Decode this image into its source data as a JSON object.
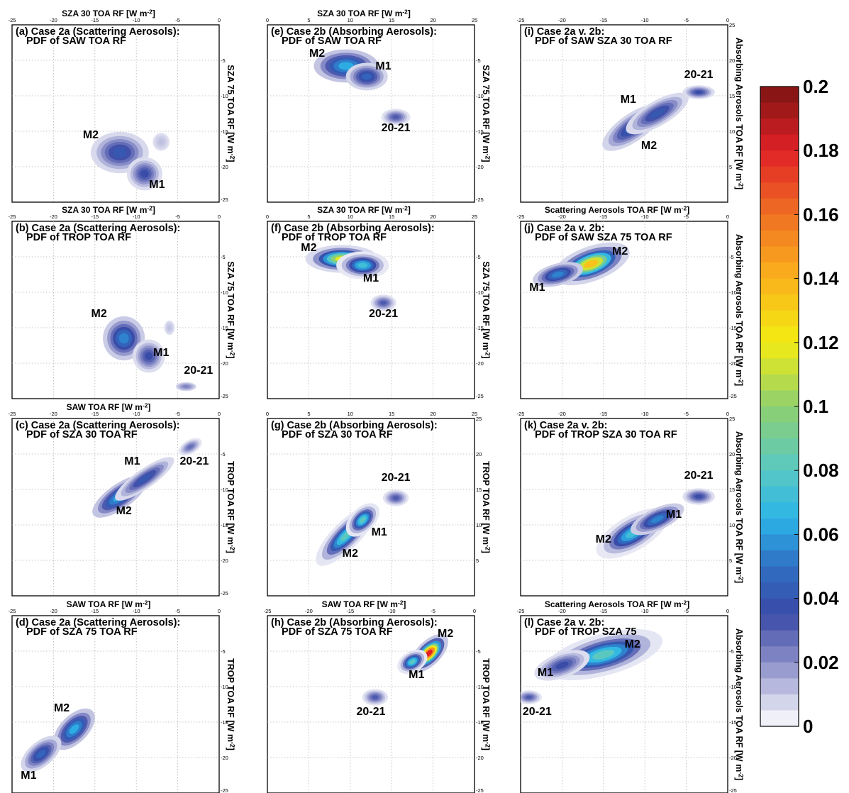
{
  "colorbar": {
    "ticks": [
      "0.2",
      "0.18",
      "0.16",
      "0.14",
      "0.12",
      "0.1",
      "0.08",
      "0.06",
      "0.04",
      "0.02",
      "0"
    ],
    "range": [
      0,
      0.2
    ],
    "colormap": [
      [
        0.0,
        "#ffffff"
      ],
      [
        0.02,
        "#8a8ec8"
      ],
      [
        0.035,
        "#3a4aa6"
      ],
      [
        0.05,
        "#2f6fc4"
      ],
      [
        0.065,
        "#2cb5e8"
      ],
      [
        0.08,
        "#58c8c4"
      ],
      [
        0.1,
        "#8fd070"
      ],
      [
        0.12,
        "#f3ed12"
      ],
      [
        0.14,
        "#fbb21c"
      ],
      [
        0.16,
        "#f07024"
      ],
      [
        0.18,
        "#e02026"
      ],
      [
        0.2,
        "#7c1512"
      ]
    ]
  },
  "chart_data": [
    {
      "id": "a",
      "type": "heatmap",
      "title": [
        "(a) Case 2a (Scattering Aerosols):",
        "PDF of SAW TOA RF"
      ],
      "xlabel": "SZA 30 TOA RF [W m-2]",
      "ylabel": "SZA 75 TOA RF [W m-2]",
      "xlim": [
        -25,
        0
      ],
      "ylim": [
        -25,
        0
      ],
      "xticks": [
        "-25",
        "-20",
        "-15",
        "-10",
        "-5",
        "0"
      ],
      "yticks": [
        "-5",
        "-10",
        "-15",
        "-20",
        "-25"
      ],
      "blobs": [
        {
          "x": -12,
          "y": -18,
          "sx": 1.8,
          "sy": 1.5,
          "rot": 0,
          "peak": 0.045
        },
        {
          "x": -9,
          "y": -21,
          "sx": 1.1,
          "sy": 1.2,
          "rot": 0,
          "peak": 0.04
        },
        {
          "x": -7,
          "y": -16.5,
          "sx": 0.8,
          "sy": 1.0,
          "rot": 0,
          "peak": 0.012
        }
      ],
      "labels": [
        {
          "text": "M2",
          "x": -15.5,
          "y": -16
        },
        {
          "text": "M1",
          "x": -7.5,
          "y": -23
        }
      ]
    },
    {
      "id": "b",
      "type": "heatmap",
      "title": [
        "(b) Case 2a (Scattering Aerosols):",
        "PDF of TROP TOA RF"
      ],
      "xlabel": "SZA 30 TOA RF [W m-2]",
      "ylabel": "SZA 75 TOA RF [W m-2]",
      "xlim": [
        -25,
        0
      ],
      "ylim": [
        -25,
        0
      ],
      "xticks": [
        "-25",
        "-20",
        "-15",
        "-10",
        "-5",
        "0"
      ],
      "yticks": [
        "-5",
        "-10",
        "-15",
        "-20",
        "-25"
      ],
      "blobs": [
        {
          "x": -11.5,
          "y": -16.5,
          "sx": 1.3,
          "sy": 1.6,
          "rot": 0,
          "peak": 0.06
        },
        {
          "x": -8.5,
          "y": -19,
          "sx": 1.0,
          "sy": 1.2,
          "rot": 0,
          "peak": 0.04
        },
        {
          "x": -6,
          "y": -15,
          "sx": 0.5,
          "sy": 0.8,
          "rot": 0,
          "peak": 0.012
        },
        {
          "x": -4,
          "y": -23.3,
          "sx": 0.8,
          "sy": 0.4,
          "rot": 0,
          "peak": 0.025
        }
      ],
      "labels": [
        {
          "text": "M2",
          "x": -14.5,
          "y": -13.5
        },
        {
          "text": "M1",
          "x": -7,
          "y": -19
        },
        {
          "text": "20-21",
          "x": -2.5,
          "y": -21.5
        }
      ]
    },
    {
      "id": "c",
      "type": "heatmap",
      "title": [
        "(c) Case 2a (Scattering Aerosols):",
        "PDF of SZA 30 TOA RF"
      ],
      "xlabel": "SAW TOA RF [W m-2]",
      "ylabel": "TROP TOA RF [W m-2]",
      "xlim": [
        -25,
        0
      ],
      "ylim": [
        -25,
        0
      ],
      "xticks": [
        "-25",
        "-20",
        "-15",
        "-10",
        "-5",
        "0"
      ],
      "yticks": [
        "-5",
        "-10",
        "-15",
        "-20",
        "-25"
      ],
      "blobs": [
        {
          "x": -12,
          "y": -11,
          "sx": 2.0,
          "sy": 0.9,
          "rot": -35,
          "peak": 0.07
        },
        {
          "x": -9,
          "y": -8.5,
          "sx": 2.2,
          "sy": 0.7,
          "rot": -35,
          "peak": 0.045
        },
        {
          "x": -3.5,
          "y": -4,
          "sx": 0.8,
          "sy": 0.5,
          "rot": -30,
          "peak": 0.03
        }
      ],
      "labels": [
        {
          "text": "M1",
          "x": -10.5,
          "y": -6.5
        },
        {
          "text": "M2",
          "x": -11.5,
          "y": -13.5
        },
        {
          "text": "20-21",
          "x": -3,
          "y": -6.5
        }
      ]
    },
    {
      "id": "d",
      "type": "heatmap",
      "title": [
        "(d) Case 2a (Scattering Aerosols):",
        "PDF of SZA 75 TOA RF"
      ],
      "xlabel": "SAW TOA RF [W m-2]",
      "ylabel": "TROP TOA RF [W m-2]",
      "xlim": [
        -25,
        0
      ],
      "ylim": [
        -25,
        0
      ],
      "xticks": [
        "-25",
        "-20",
        "-15",
        "-10",
        "-5",
        "0"
      ],
      "yticks": [
        "-5",
        "-10",
        "-15",
        "-20",
        "-25"
      ],
      "blobs": [
        {
          "x": -17.5,
          "y": -16,
          "sx": 1.6,
          "sy": 1.0,
          "rot": -45,
          "peak": 0.07
        },
        {
          "x": -21.5,
          "y": -19.5,
          "sx": 1.5,
          "sy": 0.9,
          "rot": -40,
          "peak": 0.05
        }
      ],
      "labels": [
        {
          "text": "M2",
          "x": -19,
          "y": -13.5
        },
        {
          "text": "M1",
          "x": -23,
          "y": -23
        }
      ]
    },
    {
      "id": "e",
      "type": "heatmap",
      "title": [
        "(e) Case 2b (Absorbing Aerosols):",
        "PDF of SAW TOA RF"
      ],
      "xlabel": "SZA 30 TOA RF [W m-2]",
      "ylabel": "SZA 75 TOA RF [W m-2]",
      "xlim": [
        0,
        25
      ],
      "ylim": [
        -25,
        0
      ],
      "xticks": [
        "0",
        "5",
        "10",
        "15",
        "20",
        "25"
      ],
      "yticks": [
        "-5",
        "-10",
        "-15",
        "-20",
        "-25"
      ],
      "blobs": [
        {
          "x": 9.5,
          "y": -5.8,
          "sx": 2.0,
          "sy": 1.2,
          "rot": 0,
          "peak": 0.07
        },
        {
          "x": 12,
          "y": -7.3,
          "sx": 1.3,
          "sy": 1.0,
          "rot": 0,
          "peak": 0.05
        },
        {
          "x": 15.5,
          "y": -13,
          "sx": 0.9,
          "sy": 0.6,
          "rot": 0,
          "peak": 0.035
        }
      ],
      "labels": [
        {
          "text": "M2",
          "x": 6,
          "y": -4.5
        },
        {
          "text": "M1",
          "x": 14,
          "y": -6.3
        },
        {
          "text": "20-21",
          "x": 15.5,
          "y": -15
        }
      ]
    },
    {
      "id": "f",
      "type": "heatmap",
      "title": [
        "(f) Case 2b (Absorbing Aerosols):",
        "PDF of TROP TOA RF"
      ],
      "xlabel": "SZA 30 TOA RF [W m-2]",
      "ylabel": "SZA 75 TOA RF [W m-2]",
      "xlim": [
        0,
        25
      ],
      "ylim": [
        -25,
        0
      ],
      "xticks": [
        "0",
        "5",
        "10",
        "15",
        "20",
        "25"
      ],
      "yticks": [
        "-5",
        "-10",
        "-15",
        "-20",
        "-25"
      ],
      "blobs": [
        {
          "x": 9,
          "y": -5.3,
          "sx": 1.8,
          "sy": 0.8,
          "rot": 0,
          "peak": 0.13
        },
        {
          "x": 11.5,
          "y": -6.2,
          "sx": 1.3,
          "sy": 0.8,
          "rot": 0,
          "peak": 0.08
        },
        {
          "x": 14,
          "y": -11.5,
          "sx": 0.8,
          "sy": 0.6,
          "rot": 0,
          "peak": 0.035
        }
      ],
      "labels": [
        {
          "text": "M2",
          "x": 5,
          "y": -4.2
        },
        {
          "text": "M1",
          "x": 12.5,
          "y": -8.5
        },
        {
          "text": "20-21",
          "x": 14,
          "y": -13.5
        }
      ]
    },
    {
      "id": "g",
      "type": "heatmap",
      "title": [
        "(g) Case 2b (Absorbing Aerosols):",
        "PDF of SZA 30 TOA RF"
      ],
      "xlabel": "",
      "ylabel": "TROP TOA RF [W m-2]",
      "xlim": [
        0,
        25
      ],
      "ylim": [
        0,
        25
      ],
      "xticks": [
        "0",
        "5",
        "10",
        "15",
        "20",
        "25"
      ],
      "yticks": [
        "25",
        "20",
        "15",
        "10",
        "5"
      ],
      "blobs": [
        {
          "x": 9.5,
          "y": 8.5,
          "sx": 2.0,
          "sy": 0.8,
          "rot": -45,
          "peak": 0.09
        },
        {
          "x": 11.5,
          "y": 10.7,
          "sx": 1.0,
          "sy": 0.7,
          "rot": -45,
          "peak": 0.09
        },
        {
          "x": 15.5,
          "y": 13.8,
          "sx": 0.8,
          "sy": 0.6,
          "rot": 0,
          "peak": 0.035
        }
      ],
      "labels": [
        {
          "text": "M2",
          "x": 10,
          "y": 5.5
        },
        {
          "text": "M1",
          "x": 13.5,
          "y": 8.5
        },
        {
          "text": "20-21",
          "x": 15.5,
          "y": 16.2
        }
      ]
    },
    {
      "id": "h",
      "type": "heatmap",
      "title": [
        "(h) Case 2b (Absorbing Aerosols):",
        "PDF of SZA 75 TOA RF"
      ],
      "xlabel": "SAW TOA RF [W m-2]",
      "ylabel": "TROP TOA RF [W m-2]",
      "xlim": [
        -25,
        0
      ],
      "ylim": [
        -25,
        0
      ],
      "xticks": [
        "-25",
        "-20",
        "-15",
        "-10",
        "-5",
        "0"
      ],
      "yticks": [
        "-5",
        "-10",
        "-15",
        "-20",
        "-25"
      ],
      "blobs": [
        {
          "x": -5.5,
          "y": -5.3,
          "sx": 1.2,
          "sy": 0.7,
          "rot": -45,
          "peak": 0.2
        },
        {
          "x": -7.5,
          "y": -6.5,
          "sx": 0.8,
          "sy": 0.6,
          "rot": -30,
          "peak": 0.09
        },
        {
          "x": -12,
          "y": -11.5,
          "sx": 0.8,
          "sy": 0.6,
          "rot": 0,
          "peak": 0.035
        }
      ],
      "labels": [
        {
          "text": "M2",
          "x": -3.5,
          "y": -3
        },
        {
          "text": "M1",
          "x": -7,
          "y": -8.8
        },
        {
          "text": "20-21",
          "x": -12.5,
          "y": -14
        }
      ]
    },
    {
      "id": "i",
      "type": "heatmap",
      "title": [
        "(i) Case 2a v. 2b:",
        "PDF of SAW SZA 30 TOA RF"
      ],
      "xlabel": "",
      "ylabel": "Absorbing Aerosols TOA RF [W m-2]",
      "xlim": [
        -25,
        0
      ],
      "ylim": [
        0,
        25
      ],
      "xticks": [
        "-25",
        "-20",
        "-15",
        "-10",
        "-5",
        "0"
      ],
      "yticks": [
        "25",
        "20",
        "15",
        "10",
        "5"
      ],
      "blobs": [
        {
          "x": -11.5,
          "y": 10.5,
          "sx": 2.2,
          "sy": 1.0,
          "rot": -35,
          "peak": 0.05
        },
        {
          "x": -8.5,
          "y": 12.5,
          "sx": 2.2,
          "sy": 0.9,
          "rot": -30,
          "peak": 0.045
        },
        {
          "x": -3.5,
          "y": 15.5,
          "sx": 1.0,
          "sy": 0.5,
          "rot": 0,
          "peak": 0.04
        }
      ],
      "labels": [
        {
          "text": "M1",
          "x": -12,
          "y": 14
        },
        {
          "text": "M2",
          "x": -9.5,
          "y": 7.5
        },
        {
          "text": "20-21",
          "x": -3.5,
          "y": 17.5
        }
      ]
    },
    {
      "id": "j",
      "type": "heatmap",
      "title": [
        "(j) Case 2a v. 2b:",
        "PDF of SAW SZA 75 TOA RF"
      ],
      "xlabel": "Scattering Aerosols TOA RF [W m-2]",
      "ylabel": "Absorbing Aerosols TOA RF [W m-2]",
      "xlim": [
        -25,
        0
      ],
      "ylim": [
        -25,
        0
      ],
      "xticks": [
        "-25",
        "-20",
        "-15",
        "-10",
        "-5",
        "0"
      ],
      "yticks": [
        "-5",
        "-10",
        "-15",
        "-20",
        "-25"
      ],
      "blobs": [
        {
          "x": -16.5,
          "y": -6,
          "sx": 2.0,
          "sy": 1.0,
          "rot": -20,
          "peak": 0.15
        },
        {
          "x": -20.5,
          "y": -7.5,
          "sx": 1.6,
          "sy": 0.8,
          "rot": -15,
          "peak": 0.06
        }
      ],
      "labels": [
        {
          "text": "M2",
          "x": -13,
          "y": -4.7
        },
        {
          "text": "M1",
          "x": -23,
          "y": -9.8
        }
      ]
    },
    {
      "id": "k",
      "type": "heatmap",
      "title": [
        "(k) Case 2a v. 2b:",
        "PDF of TROP SZA 30 TOA RF"
      ],
      "xlabel": "",
      "ylabel": "Absorbing Aerosols TOA RF [W m-2]",
      "xlim": [
        -25,
        0
      ],
      "ylim": [
        0,
        25
      ],
      "xticks": [
        "-25",
        "-20",
        "-15",
        "-10",
        "-5",
        "0"
      ],
      "yticks": [
        "25",
        "20",
        "15",
        "10",
        "5"
      ],
      "blobs": [
        {
          "x": -11.5,
          "y": 8.8,
          "sx": 2.0,
          "sy": 1.0,
          "rot": -30,
          "peak": 0.08
        },
        {
          "x": -8.5,
          "y": 10.8,
          "sx": 1.8,
          "sy": 0.8,
          "rot": -25,
          "peak": 0.06
        },
        {
          "x": -3.5,
          "y": 14,
          "sx": 1.0,
          "sy": 0.6,
          "rot": 0,
          "peak": 0.04
        }
      ],
      "labels": [
        {
          "text": "M1",
          "x": -6.5,
          "y": 11
        },
        {
          "text": "M2",
          "x": -15,
          "y": 7.5
        },
        {
          "text": "20-21",
          "x": -3.5,
          "y": 16.5
        }
      ]
    },
    {
      "id": "l",
      "type": "heatmap",
      "title": [
        "(l) Case 2a v. 2b:",
        "PDF of TROP SZA 75"
      ],
      "xlabel": "Scattering Aerosols TOA RF [W m-2]",
      "ylabel": "Absorbing Aerosols TOA RF [W m-2]",
      "xlim": [
        -25,
        0
      ],
      "ylim": [
        -25,
        0
      ],
      "xticks": [
        "-25",
        "-20",
        "-15",
        "-10",
        "-5",
        "0"
      ],
      "yticks": [
        "-5",
        "-10",
        "-15",
        "-20",
        "-25"
      ],
      "blobs": [
        {
          "x": -15,
          "y": -5.5,
          "sx": 3.0,
          "sy": 1.2,
          "rot": -15,
          "peak": 0.09
        },
        {
          "x": -20,
          "y": -7,
          "sx": 1.8,
          "sy": 0.9,
          "rot": -20,
          "peak": 0.04
        },
        {
          "x": -24,
          "y": -11.5,
          "sx": 0.8,
          "sy": 0.5,
          "rot": 0,
          "peak": 0.035
        }
      ],
      "labels": [
        {
          "text": "M2",
          "x": -11.5,
          "y": -4.5
        },
        {
          "text": "M1",
          "x": -22,
          "y": -8.5
        },
        {
          "text": "20-21",
          "x": -23,
          "y": -14
        }
      ]
    }
  ]
}
